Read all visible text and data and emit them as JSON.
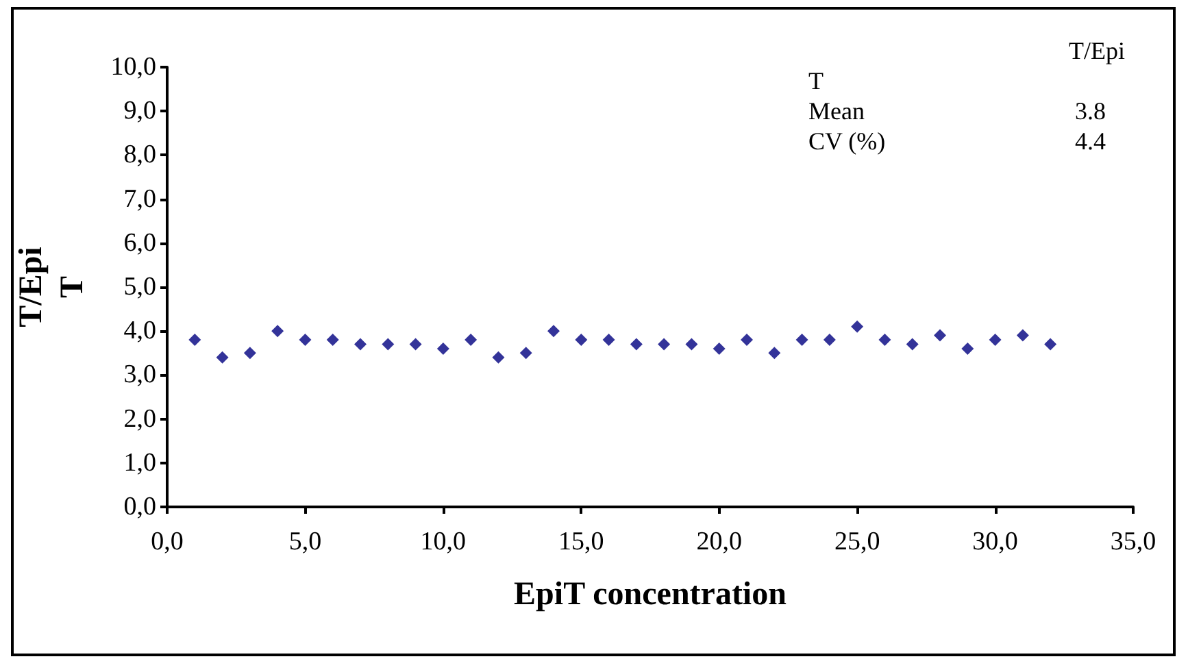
{
  "chart_data": {
    "type": "scatter",
    "xlabel": "EpiT concentration",
    "ylabel": "T/Epi T",
    "x": [
      1,
      2,
      3,
      4,
      5,
      6,
      7,
      8,
      9,
      10,
      11,
      12,
      13,
      14,
      15,
      16,
      17,
      18,
      19,
      20,
      21,
      22,
      23,
      24,
      25,
      26,
      27,
      28,
      29,
      30,
      31,
      32
    ],
    "series": [
      {
        "color": "#000080",
        "values": [
          3.8,
          3.4,
          3.5,
          4.0,
          3.8,
          3.8,
          3.7,
          3.7,
          3.7,
          3.6,
          3.8,
          3.4,
          3.5,
          4.0,
          3.8,
          3.8,
          3.7,
          3.7,
          3.7,
          3.6,
          3.8,
          3.5,
          3.8,
          3.8,
          4.1,
          3.8,
          3.7,
          3.9,
          3.6,
          3.8,
          3.9,
          3.7
        ]
      }
    ],
    "xlim": [
      0,
      35
    ],
    "xticks": [
      {
        "value": 0,
        "label": "0,0"
      },
      {
        "value": 5,
        "label": "5,0"
      },
      {
        "value": 10,
        "label": "10,0"
      },
      {
        "value": 15,
        "label": "15,0"
      },
      {
        "value": 20,
        "label": "20,0"
      },
      {
        "value": 25,
        "label": "25,0"
      },
      {
        "value": 30,
        "label": "30,0"
      },
      {
        "value": 35,
        "label": "35,0"
      }
    ],
    "ylim": [
      0,
      10
    ],
    "yticks": [
      {
        "value": 0,
        "label": "0,0"
      },
      {
        "value": 1,
        "label": "1,0"
      },
      {
        "value": 2,
        "label": "2,0"
      },
      {
        "value": 3,
        "label": "3,0"
      },
      {
        "value": 4,
        "label": "4,0"
      },
      {
        "value": 5,
        "label": "5,0"
      },
      {
        "value": 6,
        "label": "6,0"
      },
      {
        "value": 7,
        "label": "7,0"
      },
      {
        "value": 8,
        "label": "8,0"
      },
      {
        "value": 9,
        "label": "9,0"
      },
      {
        "value": 10,
        "label": "10,0"
      }
    ],
    "marker": "diamond",
    "annotations": [
      "T/Epi",
      "T",
      "Mean",
      "3.8",
      "CV (%)",
      "4.4"
    ]
  }
}
